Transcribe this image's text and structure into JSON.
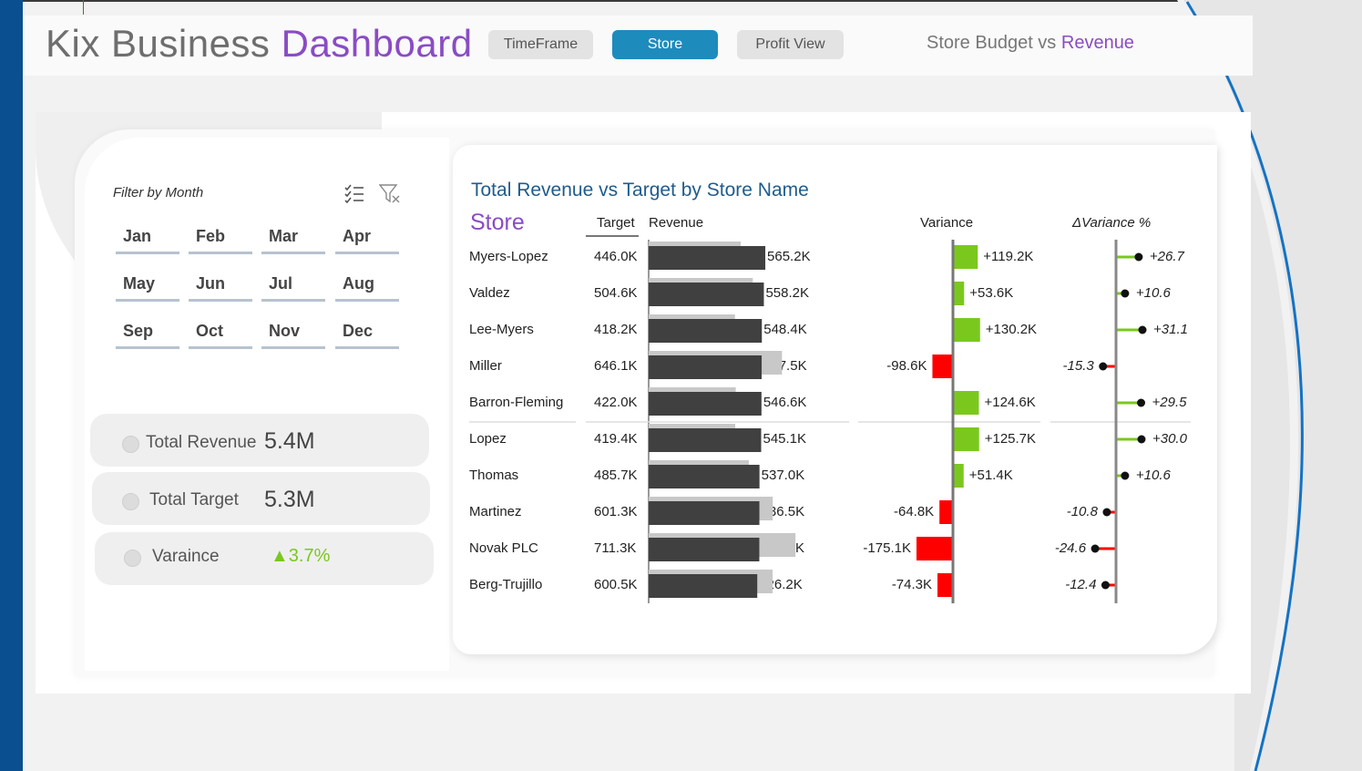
{
  "app": {
    "title_main": "Kix Business ",
    "title_accent": "Dashboard",
    "subtitle_main": "Store Budget vs ",
    "subtitle_accent": "Revenue"
  },
  "nav": {
    "timeframe": "TimeFrame",
    "store": "Store",
    "profit": "Profit View",
    "active": "Store"
  },
  "filter": {
    "label": "Filter by Month",
    "icons": [
      "multi-select-icon",
      "clear-filter-icon"
    ],
    "months": [
      "Jan",
      "Feb",
      "Mar",
      "Apr",
      "May",
      "Jun",
      "Jul",
      "Aug",
      "Sep",
      "Oct",
      "Nov",
      "Dec"
    ]
  },
  "kpis": {
    "revenue": {
      "label": "Total Revenue",
      "value": "5.4M"
    },
    "target": {
      "label": "Total Target",
      "value": "5.3M"
    },
    "variance": {
      "label": "Varaince",
      "value": "▲3.7%",
      "color": "#7ac81e"
    }
  },
  "colors": {
    "accent_purple": "#8a4cc4",
    "accent_blue": "#1e8bbd",
    "positive": "#7ac81e",
    "negative": "#ff0000",
    "revenue_bar": "#404040",
    "target_bar": "#c8c8c8"
  },
  "chart_data": {
    "type": "bar",
    "title": "Total Revenue vs Target by Store Name",
    "store_header": "Store",
    "columns": {
      "target": "Target",
      "revenue": "Revenue",
      "variance": "Variance",
      "variance_pct": "ΔVariance %"
    },
    "rows": [
      {
        "store": "Myers-Lopez",
        "target": 446.0,
        "revenue": 565.2,
        "variance": 119.2,
        "variance_pct": 26.7,
        "target_label": "446.0K",
        "revenue_label": "565.2K",
        "variance_label": "+119.2K",
        "pct_label": "+26.7"
      },
      {
        "store": "Valdez",
        "target": 504.6,
        "revenue": 558.2,
        "variance": 53.6,
        "variance_pct": 10.6,
        "target_label": "504.6K",
        "revenue_label": "558.2K",
        "variance_label": "+53.6K",
        "pct_label": "+10.6"
      },
      {
        "store": "Lee-Myers",
        "target": 418.2,
        "revenue": 548.4,
        "variance": 130.2,
        "variance_pct": 31.1,
        "target_label": "418.2K",
        "revenue_label": "548.4K",
        "variance_label": "+130.2K",
        "pct_label": "+31.1"
      },
      {
        "store": "Miller",
        "target": 646.1,
        "revenue": 547.5,
        "variance": -98.6,
        "variance_pct": -15.3,
        "target_label": "646.1K",
        "revenue_label": "547.5K",
        "variance_label": "-98.6K",
        "pct_label": "-15.3"
      },
      {
        "store": "Barron-Fleming",
        "target": 422.0,
        "revenue": 546.6,
        "variance": 124.6,
        "variance_pct": 29.5,
        "target_label": "422.0K",
        "revenue_label": "546.6K",
        "variance_label": "+124.6K",
        "pct_label": "+29.5"
      },
      {
        "store": "Lopez",
        "target": 419.4,
        "revenue": 545.1,
        "variance": 125.7,
        "variance_pct": 30.0,
        "target_label": "419.4K",
        "revenue_label": "545.1K",
        "variance_label": "+125.7K",
        "pct_label": "+30.0"
      },
      {
        "store": "Thomas",
        "target": 485.7,
        "revenue": 537.0,
        "variance": 51.4,
        "variance_pct": 10.6,
        "target_label": "485.7K",
        "revenue_label": "537.0K",
        "variance_label": "+51.4K",
        "pct_label": "+10.6"
      },
      {
        "store": "Martinez",
        "target": 601.3,
        "revenue": 536.5,
        "variance": -64.8,
        "variance_pct": -10.8,
        "target_label": "601.3K",
        "revenue_label": "536.5K",
        "variance_label": "-64.8K",
        "pct_label": "-10.8"
      },
      {
        "store": "Novak PLC",
        "target": 711.3,
        "revenue": 536.2,
        "variance": -175.1,
        "variance_pct": -24.6,
        "target_label": "711.3K",
        "revenue_label": "536.2K",
        "variance_label": "-175.1K",
        "pct_label": "-24.6"
      },
      {
        "store": "Berg-Trujillo",
        "target": 600.5,
        "revenue": 526.2,
        "variance": -74.3,
        "variance_pct": -12.4,
        "target_label": "600.5K",
        "revenue_label": "526.2K",
        "variance_label": "-74.3K",
        "pct_label": "-12.4"
      }
    ]
  }
}
